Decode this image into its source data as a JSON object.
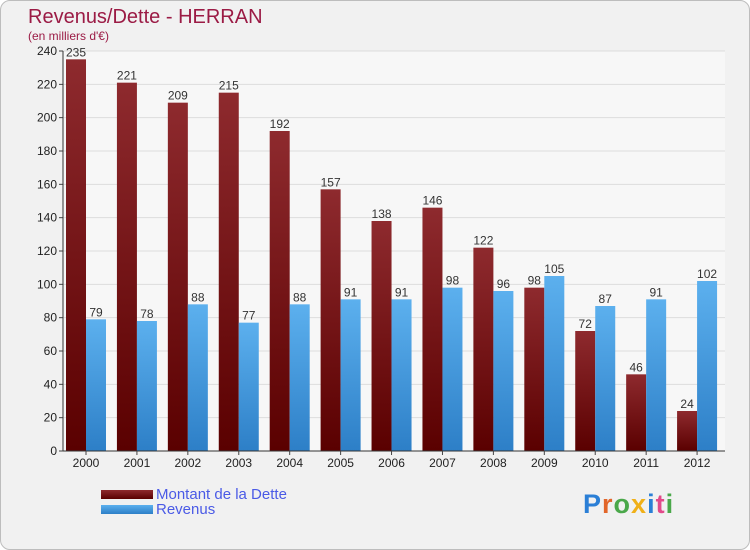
{
  "title": "Revenus/Dette - HERRAN",
  "subtitle": "(en milliers d'€)",
  "logo": "Proxiti",
  "colors": {
    "dette": "#7b1414",
    "revenus": "#4a9fe2",
    "title": "#9b1b45",
    "legend_text": "#4a5ae6"
  },
  "chart_data": {
    "type": "bar",
    "categories": [
      "2000",
      "2001",
      "2002",
      "2003",
      "2004",
      "2005",
      "2006",
      "2007",
      "2008",
      "2009",
      "2010",
      "2011",
      "2012"
    ],
    "series": [
      {
        "name": "Montant de la Dette",
        "values": [
          235,
          221,
          209,
          215,
          192,
          157,
          138,
          146,
          122,
          98,
          72,
          46,
          24
        ]
      },
      {
        "name": "Revenus",
        "values": [
          79,
          78,
          88,
          77,
          88,
          91,
          91,
          98,
          96,
          105,
          87,
          91,
          102
        ]
      }
    ],
    "ylim": [
      0,
      240
    ],
    "yticks": [
      0,
      20,
      40,
      60,
      80,
      100,
      120,
      140,
      160,
      180,
      200,
      220,
      240
    ],
    "grid": true,
    "legend_position": "bottom-left"
  }
}
